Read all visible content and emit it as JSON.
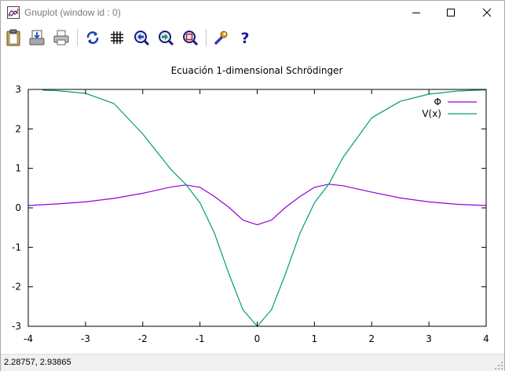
{
  "window": {
    "title": "Gnuplot (window id : 0)"
  },
  "toolbar": {
    "items": [
      {
        "name": "clipboard-icon"
      },
      {
        "name": "save-icon"
      },
      {
        "name": "print-icon"
      },
      {
        "name": "replot-icon"
      },
      {
        "name": "grid-icon"
      },
      {
        "name": "zoom-previous-icon"
      },
      {
        "name": "zoom-next-icon"
      },
      {
        "name": "zoom-unzoom-icon"
      },
      {
        "name": "options-icon"
      },
      {
        "name": "help-icon"
      }
    ]
  },
  "status": {
    "coords": "2.28757,  2.93865"
  },
  "colors": {
    "phi": "#9400d3",
    "potential": "#009e73",
    "axis": "#000000"
  },
  "chart_data": {
    "type": "line",
    "title": "Ecuación 1-dimensional Schrödinger",
    "xlabel": "",
    "ylabel": "",
    "xlim": [
      -4,
      4
    ],
    "ylim": [
      -3,
      3
    ],
    "x_ticks": [
      -4,
      -3,
      -2,
      -1,
      0,
      1,
      2,
      3,
      4
    ],
    "y_ticks": [
      -3,
      -2,
      -1,
      0,
      1,
      2,
      3
    ],
    "x_tick_labels": [
      "-4",
      "-3",
      "-2",
      "-1",
      "0",
      "1",
      "2",
      "3",
      "4"
    ],
    "y_tick_labels": [
      "-3",
      "-2",
      "-1",
      "0",
      "1",
      "2",
      "3"
    ],
    "grid": false,
    "legend_position": "top-right",
    "series": [
      {
        "name": "Φ",
        "color": "#9400d3",
        "x": [
          -4.0,
          -3.5,
          -3.0,
          -2.5,
          -2.0,
          -1.5,
          -1.25,
          -1.0,
          -0.75,
          -0.5,
          -0.25,
          0.0,
          0.25,
          0.5,
          0.75,
          1.0,
          1.25,
          1.5,
          2.0,
          2.5,
          3.0,
          3.5,
          4.0
        ],
        "y": [
          0.06,
          0.1,
          0.15,
          0.24,
          0.37,
          0.53,
          0.58,
          0.52,
          0.29,
          0.02,
          -0.31,
          -0.43,
          -0.31,
          0.02,
          0.29,
          0.52,
          0.6,
          0.56,
          0.4,
          0.25,
          0.15,
          0.09,
          0.06
        ]
      },
      {
        "name": "V(x)",
        "color": "#009e73",
        "x": [
          -3.75,
          -3.5,
          -3.0,
          -2.5,
          -2.0,
          -1.5,
          -1.25,
          -1.0,
          -0.75,
          -0.5,
          -0.25,
          0.0,
          0.25,
          0.5,
          0.75,
          1.0,
          1.25,
          1.5,
          2.0,
          2.5,
          3.0,
          3.5,
          4.0
        ],
        "y": [
          2.98,
          2.97,
          2.9,
          2.64,
          1.87,
          0.96,
          0.6,
          0.13,
          -0.63,
          -1.65,
          -2.58,
          -3.0,
          -2.58,
          -1.65,
          -0.63,
          0.13,
          0.6,
          1.28,
          2.28,
          2.7,
          2.88,
          2.96,
          2.99
        ]
      }
    ]
  }
}
